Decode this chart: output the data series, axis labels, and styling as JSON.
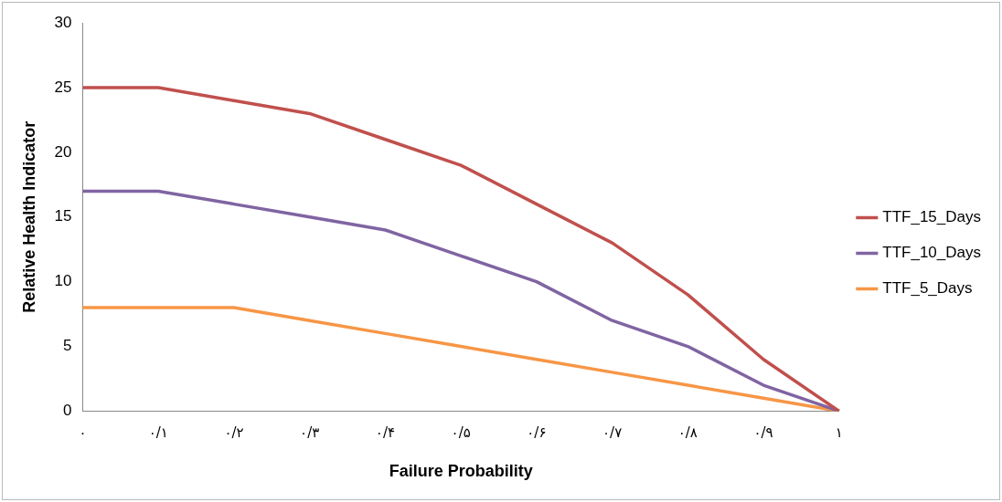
{
  "chart_data": {
    "type": "line",
    "xlabel": "Failure Probability",
    "ylabel": "Relative Health Indicator",
    "categories": [
      "۰",
      "۰/۱",
      "۰/۲",
      "۰/۳",
      "۰/۴",
      "۰/۵",
      "۰/۶",
      "۰/۷",
      "۰/۸",
      "۰/۹",
      "۱"
    ],
    "series": [
      {
        "name": "TTF_15_Days",
        "color": "#c0504d",
        "values": [
          25,
          25,
          24,
          23,
          21,
          19,
          16,
          13,
          9,
          4,
          0
        ]
      },
      {
        "name": "TTF_10_Days",
        "color": "#8064a2",
        "values": [
          17,
          17,
          16,
          15,
          14,
          12,
          10,
          7,
          5,
          2,
          0
        ]
      },
      {
        "name": "TTF_5_Days",
        "color": "#f79646",
        "values": [
          8,
          8,
          8,
          7,
          6,
          5,
          4,
          3,
          2,
          1,
          0
        ]
      }
    ],
    "ylim": [
      0,
      30
    ],
    "yticks": [
      0,
      5,
      10,
      15,
      20,
      25,
      30
    ],
    "grid": false,
    "legend": "right",
    "marker": "none",
    "line_style": "solid"
  }
}
